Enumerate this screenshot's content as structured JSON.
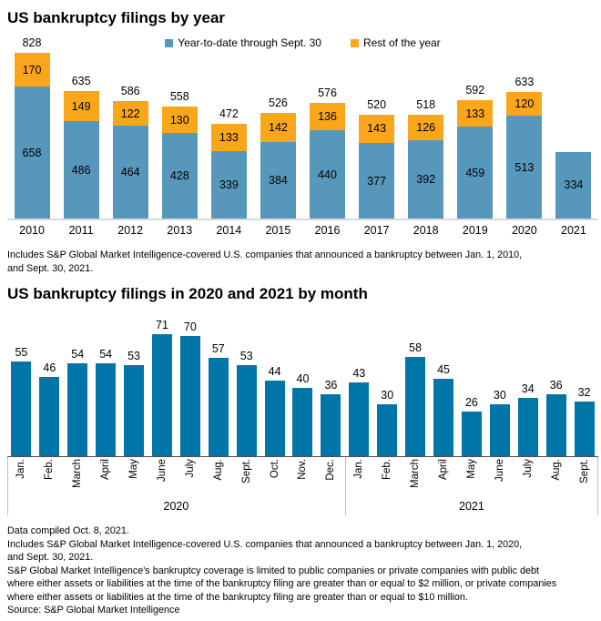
{
  "chart_data": [
    {
      "type": "bar",
      "stacked": true,
      "title": "US bankruptcy filings by year",
      "categories": [
        "2010",
        "2011",
        "2012",
        "2013",
        "2014",
        "2015",
        "2016",
        "2017",
        "2018",
        "2019",
        "2020",
        "2021"
      ],
      "series": [
        {
          "name": "Year-to-date through Sept. 30",
          "color": "#5897BC",
          "values": [
            658,
            486,
            464,
            428,
            339,
            384,
            440,
            377,
            392,
            459,
            513,
            334
          ]
        },
        {
          "name": "Rest of the year",
          "color": "#FAA61A",
          "values": [
            170,
            149,
            122,
            130,
            133,
            142,
            136,
            143,
            126,
            133,
            120,
            null
          ]
        }
      ],
      "totals": [
        828,
        635,
        586,
        558,
        472,
        526,
        576,
        520,
        518,
        592,
        633,
        null
      ],
      "ylim": [
        0,
        850
      ],
      "grid": false,
      "legend_position": "top"
    },
    {
      "type": "bar",
      "title": "US bankruptcy filings in 2020 and 2021 by month",
      "bar_color": "#0076A8",
      "ylim": [
        0,
        75
      ],
      "grid": false,
      "groups": [
        {
          "label": "2020",
          "categories": [
            "Jan.",
            "Feb.",
            "March",
            "April",
            "May",
            "June",
            "July",
            "Aug.",
            "Sept.",
            "Oct.",
            "Nov.",
            "Dec."
          ],
          "values": [
            55,
            46,
            54,
            54,
            53,
            71,
            70,
            57,
            53,
            44,
            40,
            36
          ]
        },
        {
          "label": "2021",
          "categories": [
            "Jan.",
            "Feb.",
            "March",
            "April",
            "May",
            "June",
            "July",
            "Aug.",
            "Sept."
          ],
          "values": [
            43,
            30,
            58,
            45,
            26,
            30,
            34,
            36,
            32
          ]
        }
      ]
    }
  ],
  "notes": {
    "chart1_note": "Includes S&P Global Market Intelligence-covered U.S. companies that announced a bankruptcy between Jan. 1, 2010,\nand Sept. 30, 2021.",
    "footer": "Data compiled Oct. 8, 2021.\nIncludes S&P Global Market Intelligence-covered U.S. companies that announced a bankruptcy between Jan. 1, 2020,\nand Sept. 30, 2021.\nS&P Global Market Intelligence's bankruptcy coverage is limited to public companies or private companies with public debt\nwhere either assets or liabilities at the time of the bankruptcy filing are greater than or equal to $2 million, or private companies\nwhere either assets or liabilities at the time of the bankruptcy filing are greater than or equal to $10 million.\nSource: S&P Global Market Intelligence"
  }
}
